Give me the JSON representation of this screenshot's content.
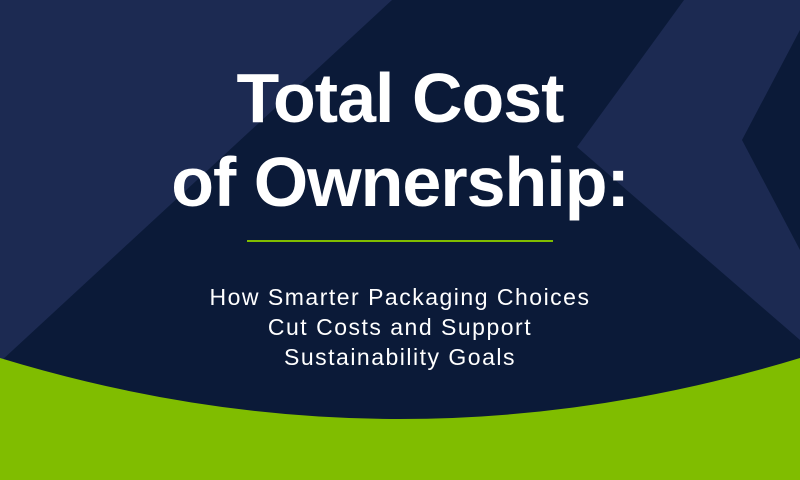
{
  "title": {
    "line1": "Total Cost",
    "line2": "of Ownership:"
  },
  "subtitle": {
    "line1": "How Smarter Packaging Choices",
    "line2": "Cut Costs and Support",
    "line3": "Sustainability Goals"
  },
  "colors": {
    "navy_dark": "#0b1a38",
    "navy_light": "#1c2a52",
    "green": "#80bd00",
    "text": "#ffffff"
  }
}
